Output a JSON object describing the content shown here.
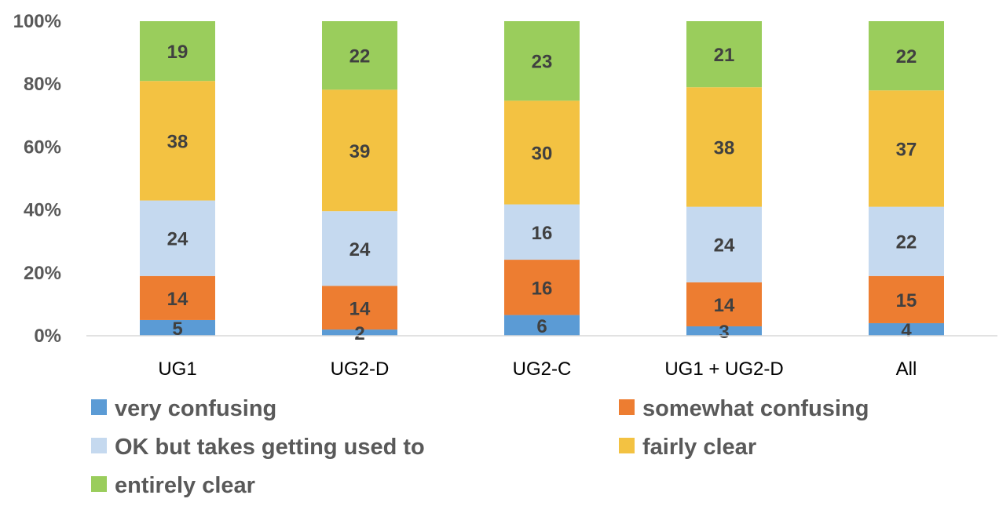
{
  "chart_data": {
    "type": "bar",
    "stacked": true,
    "normalized": true,
    "categories": [
      "UG1",
      "UG2-D",
      "UG2-C",
      "UG1 + UG2-D",
      "All"
    ],
    "series": [
      {
        "name": "very confusing",
        "color": "#5B9BD5",
        "values": [
          5,
          2,
          6,
          3,
          4
        ]
      },
      {
        "name": "somewhat confusing",
        "color": "#ED7D31",
        "values": [
          14,
          14,
          16,
          14,
          15
        ]
      },
      {
        "name": "OK but takes getting used to",
        "color": "#C5D9EF",
        "values": [
          24,
          24,
          16,
          24,
          22
        ]
      },
      {
        "name": "fairly clear",
        "color": "#F3C242",
        "values": [
          38,
          39,
          30,
          38,
          37
        ]
      },
      {
        "name": "entirely clear",
        "color": "#9ACD5C",
        "values": [
          19,
          22,
          23,
          21,
          22
        ]
      }
    ],
    "yticks": [
      "0%",
      "20%",
      "40%",
      "60%",
      "80%",
      "100%"
    ],
    "ylim": [
      0,
      100
    ],
    "title": "",
    "xlabel": "",
    "ylabel": "",
    "grid": false,
    "legend_position": "bottom"
  }
}
